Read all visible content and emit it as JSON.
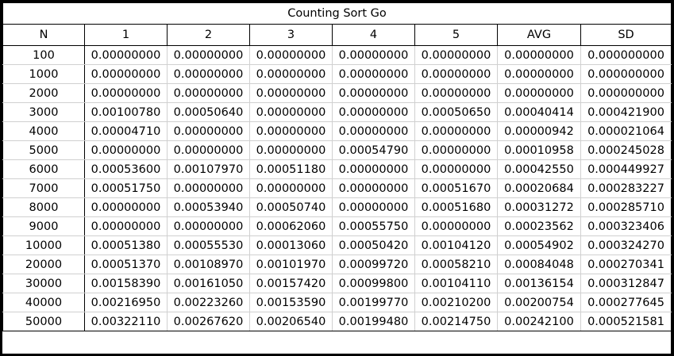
{
  "table": {
    "title": "Counting Sort Go",
    "headers": [
      "N",
      "1",
      "2",
      "3",
      "4",
      "5",
      "AVG",
      "SD"
    ],
    "rows": [
      [
        "100",
        "0.00000000",
        "0.00000000",
        "0.00000000",
        "0.00000000",
        "0.00000000",
        "0.00000000",
        "0.000000000"
      ],
      [
        "1000",
        "0.00000000",
        "0.00000000",
        "0.00000000",
        "0.00000000",
        "0.00000000",
        "0.00000000",
        "0.000000000"
      ],
      [
        "2000",
        "0.00000000",
        "0.00000000",
        "0.00000000",
        "0.00000000",
        "0.00000000",
        "0.00000000",
        "0.000000000"
      ],
      [
        "3000",
        "0.00100780",
        "0.00050640",
        "0.00000000",
        "0.00000000",
        "0.00050650",
        "0.00040414",
        "0.000421900"
      ],
      [
        "4000",
        "0.00004710",
        "0.00000000",
        "0.00000000",
        "0.00000000",
        "0.00000000",
        "0.00000942",
        "0.000021064"
      ],
      [
        "5000",
        "0.00000000",
        "0.00000000",
        "0.00000000",
        "0.00054790",
        "0.00000000",
        "0.00010958",
        "0.000245028"
      ],
      [
        "6000",
        "0.00053600",
        "0.00107970",
        "0.00051180",
        "0.00000000",
        "0.00000000",
        "0.00042550",
        "0.000449927"
      ],
      [
        "7000",
        "0.00051750",
        "0.00000000",
        "0.00000000",
        "0.00000000",
        "0.00051670",
        "0.00020684",
        "0.000283227"
      ],
      [
        "8000",
        "0.00000000",
        "0.00053940",
        "0.00050740",
        "0.00000000",
        "0.00051680",
        "0.00031272",
        "0.000285710"
      ],
      [
        "9000",
        "0.00000000",
        "0.00000000",
        "0.00062060",
        "0.00055750",
        "0.00000000",
        "0.00023562",
        "0.000323406"
      ],
      [
        "10000",
        "0.00051380",
        "0.00055530",
        "0.00013060",
        "0.00050420",
        "0.00104120",
        "0.00054902",
        "0.000324270"
      ],
      [
        "20000",
        "0.00051370",
        "0.00108970",
        "0.00101970",
        "0.00099720",
        "0.00058210",
        "0.00084048",
        "0.000270341"
      ],
      [
        "30000",
        "0.00158390",
        "0.00161050",
        "0.00157420",
        "0.00099800",
        "0.00104110",
        "0.00136154",
        "0.000312847"
      ],
      [
        "40000",
        "0.00216950",
        "0.00223260",
        "0.00153590",
        "0.00199770",
        "0.00210200",
        "0.00200754",
        "0.000277645"
      ],
      [
        "50000",
        "0.00322110",
        "0.00267620",
        "0.00206540",
        "0.00199480",
        "0.00214750",
        "0.00242100",
        "0.000521581"
      ]
    ]
  }
}
